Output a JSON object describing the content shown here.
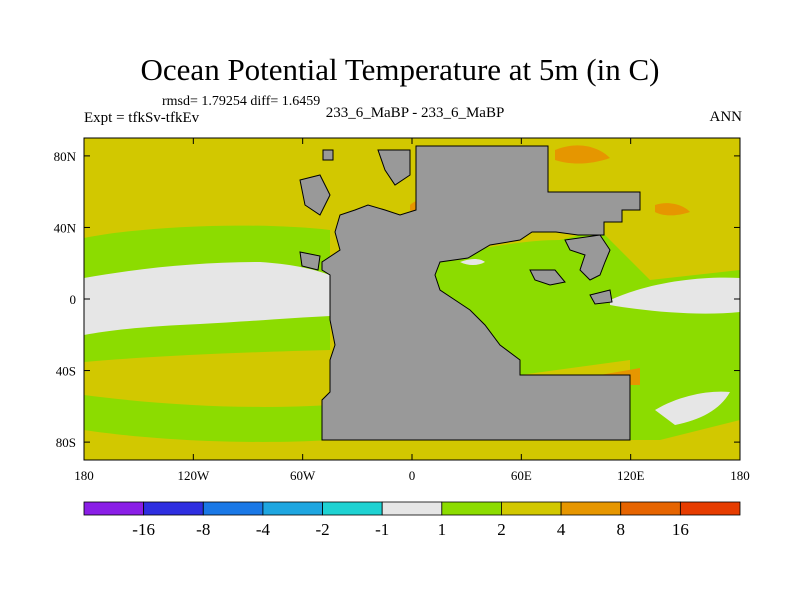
{
  "chart_data": {
    "type": "heatmap",
    "title": "Ocean Potential Temperature at 5m (in C)",
    "stats": "rmsd= 1.79254 diff= 1.6459",
    "experiment": "Expt = tfkSv-tfkEv",
    "case": "233_6_MaBP - 233_6_MaBP",
    "season": "ANN",
    "xaxis": {
      "range": [
        -180,
        180
      ],
      "ticks": [
        -180,
        -120,
        -60,
        0,
        60,
        120,
        180
      ],
      "tick_labels": [
        "180",
        "120W",
        "60W",
        "0",
        "60E",
        "120E",
        "180"
      ]
    },
    "yaxis": {
      "range": [
        -90,
        90
      ],
      "ticks": [
        80,
        40,
        0,
        -40,
        -80
      ],
      "tick_labels": [
        "80N",
        "40N",
        "0",
        "40S",
        "80S"
      ]
    },
    "colorbar": {
      "levels": [
        "-16",
        "-8",
        "-4",
        "-2",
        "-1",
        "1",
        "2",
        "4",
        "8",
        "16"
      ],
      "colors": [
        "#8a1ee6",
        "#2e2ee0",
        "#1a78e6",
        "#1ea6e0",
        "#1ed2d2",
        "#e6e6e6",
        "#8cdc00",
        "#d2c800",
        "#e69600",
        "#e66400",
        "#e63c00"
      ]
    },
    "land_color": "#999999",
    "regions": [
      {
        "name": "background",
        "value_range": "2 to 4"
      },
      {
        "name": "equatorial band",
        "value_range": "-1 to 1"
      },
      {
        "name": "tropical flanks and eastern basin",
        "value_range": "1 to 2"
      },
      {
        "name": "polar hotspots",
        "value_range": "4 to 8"
      }
    ]
  }
}
